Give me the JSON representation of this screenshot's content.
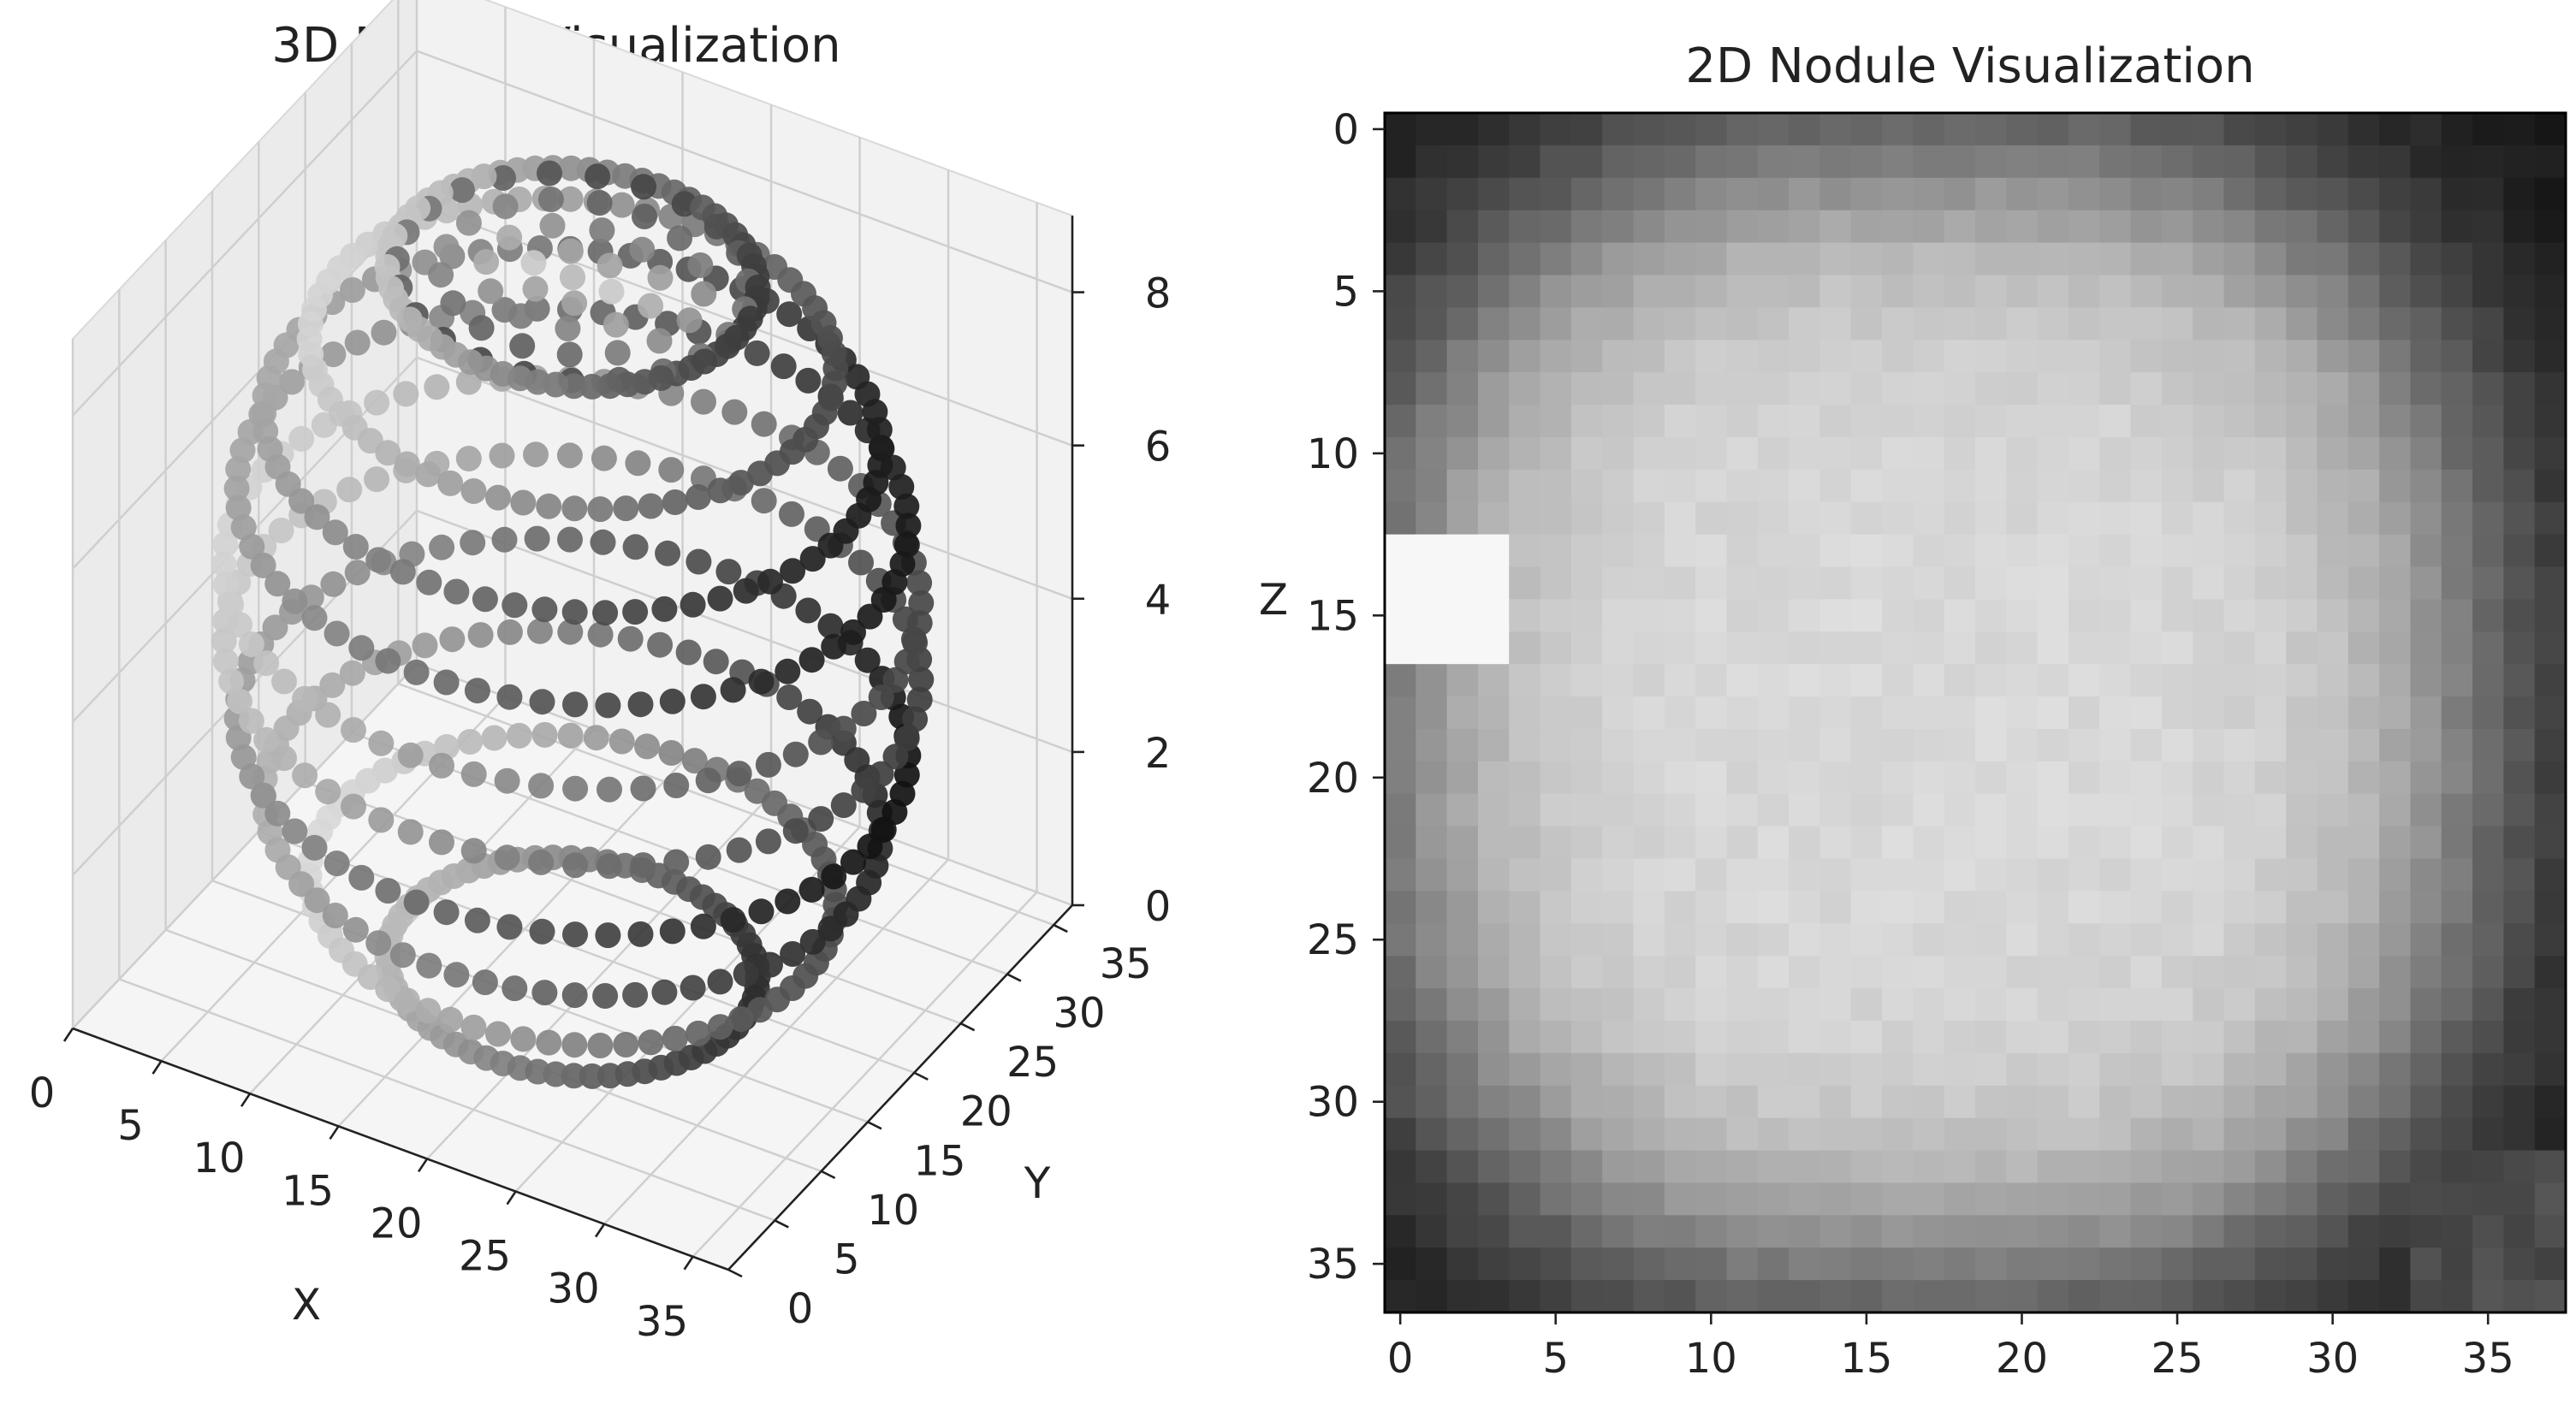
{
  "chart_data": [
    {
      "type": "scatter",
      "projection": "3d",
      "title": "3D Nodule Visualization",
      "xlabel": "X",
      "ylabel": "Y",
      "zlabel": "",
      "xlim": [
        0,
        37
      ],
      "ylim": [
        0,
        37
      ],
      "zlim": [
        0,
        9
      ],
      "xticks": [
        0,
        5,
        10,
        15,
        20,
        25,
        30,
        35
      ],
      "yticks": [
        0,
        5,
        10,
        15,
        20,
        25,
        30,
        35
      ],
      "zticks": [
        0,
        2,
        4,
        6,
        8
      ],
      "colormap": "gray",
      "grid": true,
      "nodule": {
        "center": [
          18.5,
          18.5
        ],
        "radius": 17.5,
        "slices": 10
      }
    },
    {
      "type": "heatmap",
      "title": "2D Nodule Visualization",
      "xlabel": "",
      "ylabel": "Z",
      "shape": [
        37,
        38
      ],
      "xticks": [
        0,
        5,
        10,
        15,
        20,
        25,
        30,
        35
      ],
      "yticks": [
        0,
        5,
        10,
        15,
        20,
        25,
        30,
        35
      ],
      "colormap": "gray",
      "nodule": {
        "center_row": 18.5,
        "center_col": 17.5,
        "radius": 17.5
      }
    }
  ]
}
